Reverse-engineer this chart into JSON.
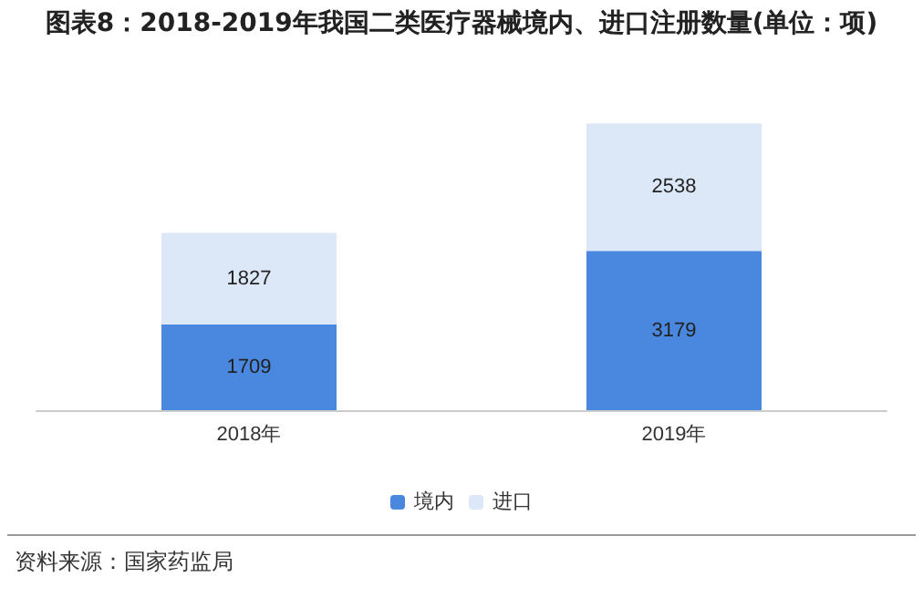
{
  "chart_data": {
    "type": "bar",
    "title": "图表8：2018-2019年我国二类医疗器械境内、进口注册数量(单位：项)",
    "categories": [
      "2018年",
      "2019年"
    ],
    "stacked": true,
    "data_labels": true,
    "legend": "bottom",
    "series": [
      {
        "name": "境内",
        "color": "#4a88e0",
        "values": [
          1709,
          3179
        ]
      },
      {
        "name": "进口",
        "color": "#dce8f8",
        "values": [
          1827,
          2538
        ]
      }
    ],
    "annotations": [
      "资料来源：国家药监局"
    ]
  }
}
